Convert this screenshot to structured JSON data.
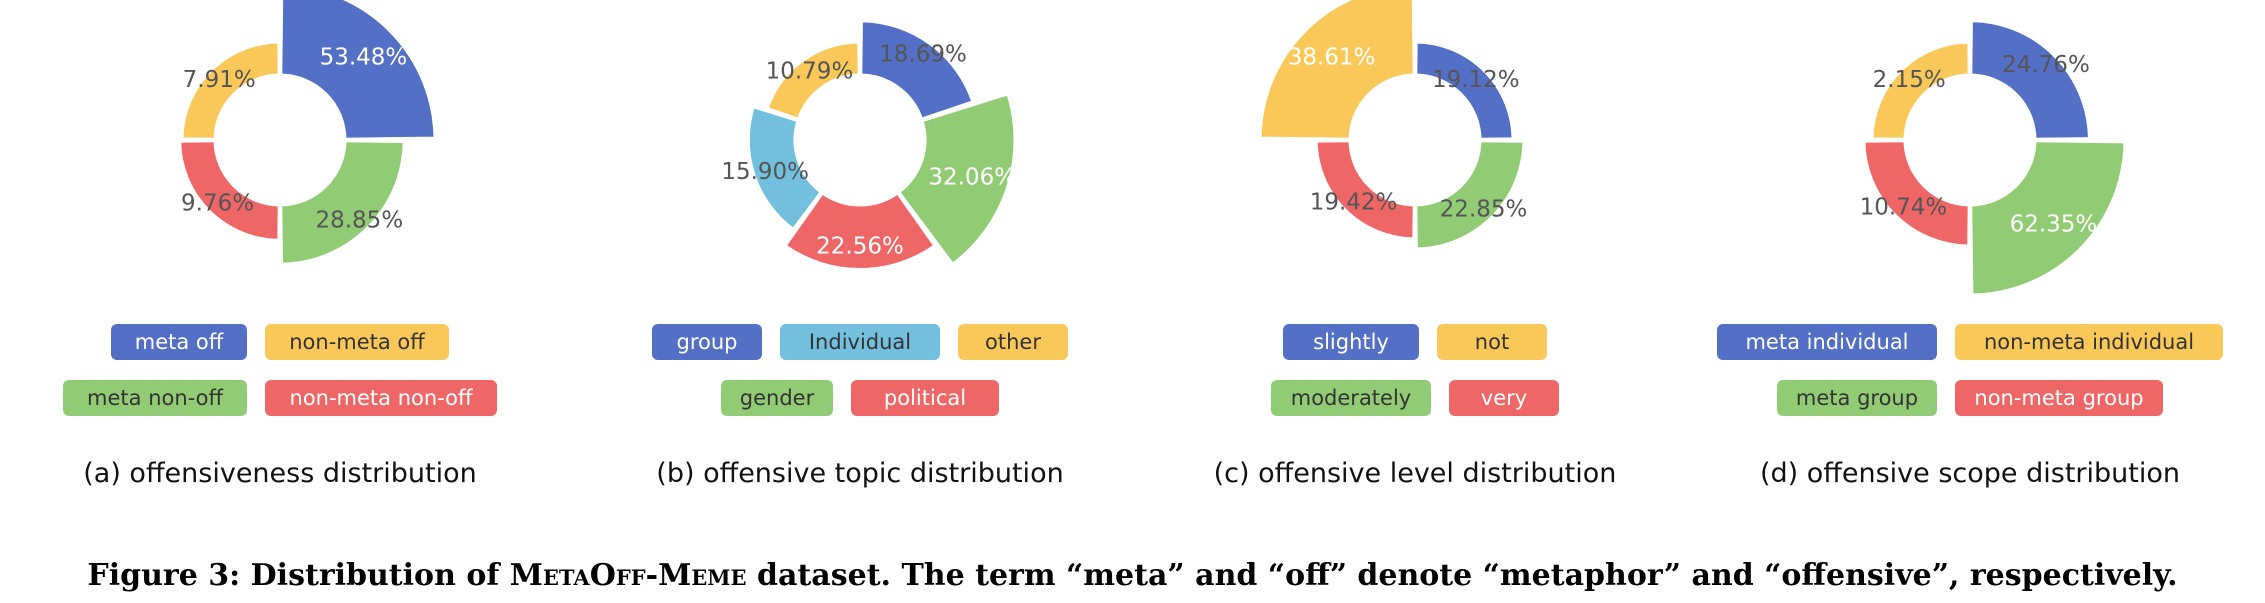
{
  "colors": {
    "blue": "#5470c6",
    "yellow": "#fac858",
    "green": "#91cc75",
    "red": "#ee6666",
    "cyan": "#73c0de"
  },
  "chart_data": [
    {
      "type": "pie",
      "subtype": "rose-donut",
      "caption": "(a) offensiveness distribution",
      "labels": [
        "meta off",
        "non-meta off",
        "meta non-off",
        "non-meta non-off"
      ],
      "slices": [
        {
          "label": "meta off",
          "value": 53.48,
          "text": "53.48%",
          "color": "#5470c6"
        },
        {
          "label": "meta non-off",
          "value": 28.85,
          "text": "28.85%",
          "color": "#91cc75"
        },
        {
          "label": "non-meta non-off",
          "value": 9.76,
          "text": "9.76%",
          "color": "#ee6666"
        },
        {
          "label": "non-meta off",
          "value": 7.91,
          "text": "7.91%",
          "color": "#fac858"
        }
      ],
      "legend_rows": [
        [
          "meta off",
          "non-meta off"
        ],
        [
          "meta non-off",
          "non-meta non-off"
        ]
      ]
    },
    {
      "type": "pie",
      "subtype": "rose-donut",
      "caption": "(b) offensive topic distribution",
      "labels": [
        "group",
        "Individual",
        "other",
        "gender",
        "political"
      ],
      "slices": [
        {
          "label": "group",
          "value": 18.69,
          "text": "18.69%",
          "color": "#5470c6"
        },
        {
          "label": "gender",
          "value": 32.06,
          "text": "32.06%",
          "color": "#91cc75"
        },
        {
          "label": "political",
          "value": 22.56,
          "text": "22.56%",
          "color": "#ee6666"
        },
        {
          "label": "Individual",
          "value": 15.9,
          "text": "15.90%",
          "color": "#73c0de"
        },
        {
          "label": "other",
          "value": 10.79,
          "text": "10.79%",
          "color": "#fac858"
        }
      ],
      "legend_rows": [
        [
          "group",
          "Individual",
          "other"
        ],
        [
          "gender",
          "political"
        ]
      ]
    },
    {
      "type": "pie",
      "subtype": "rose-donut",
      "caption": "(c) offensive level distribution",
      "labels": [
        "slightly",
        "not",
        "moderately",
        "very"
      ],
      "slices": [
        {
          "label": "slightly",
          "value": 19.12,
          "text": "19.12%",
          "color": "#5470c6"
        },
        {
          "label": "moderately",
          "value": 22.85,
          "text": "22.85%",
          "color": "#91cc75"
        },
        {
          "label": "very",
          "value": 19.42,
          "text": "19.42%",
          "color": "#ee6666"
        },
        {
          "label": "not",
          "value": 38.61,
          "text": "38.61%",
          "color": "#fac858"
        }
      ],
      "legend_rows": [
        [
          "slightly",
          "not"
        ],
        [
          "moderately",
          "very"
        ]
      ]
    },
    {
      "type": "pie",
      "subtype": "rose-donut",
      "caption": "(d) offensive scope distribution",
      "labels": [
        "meta individual",
        "non-meta individual",
        "meta group",
        "non-meta group"
      ],
      "slices": [
        {
          "label": "meta individual",
          "value": 24.76,
          "text": "24.76%",
          "color": "#5470c6"
        },
        {
          "label": "meta group",
          "value": 62.35,
          "text": "62.35%",
          "color": "#91cc75"
        },
        {
          "label": "non-meta group",
          "value": 10.74,
          "text": "10.74%",
          "color": "#ee6666"
        },
        {
          "label": "non-meta individual",
          "value": 2.15,
          "text": "2.15%",
          "color": "#fac858"
        }
      ],
      "legend_rows": [
        [
          "meta individual",
          "non-meta individual"
        ],
        [
          "meta group",
          "non-meta group"
        ]
      ]
    }
  ],
  "figure_caption": {
    "number": "Figure 3:",
    "prefix": "Distribution of",
    "dataset": "MetaOff-Meme",
    "suffix": "dataset. The term “meta” and “off” denote “metaphor” and “offensive”, respectively."
  }
}
